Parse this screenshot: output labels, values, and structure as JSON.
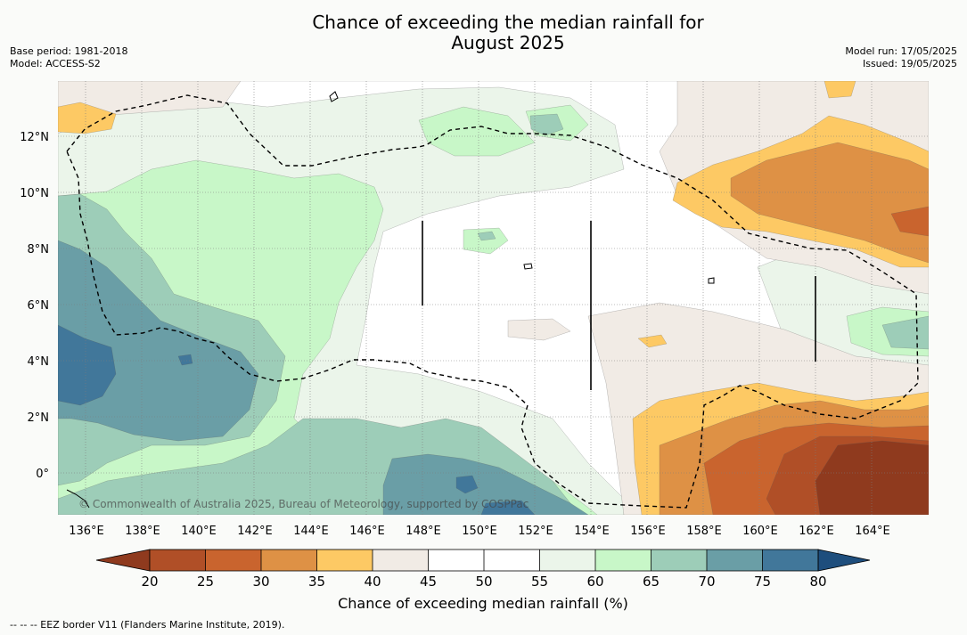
{
  "header": {
    "title_line1": "Chance of exceeding the median rainfall for",
    "title_line2": "August 2025",
    "base_period": "Base period: 1981-2018",
    "model": "Model: ACCESS-S2",
    "model_run": "Model run: 17/05/2025",
    "issued": "Issued: 19/05/2025"
  },
  "map": {
    "x_ticks": [
      "136°E",
      "138°E",
      "140°E",
      "142°E",
      "144°E",
      "146°E",
      "148°E",
      "150°E",
      "152°E",
      "154°E",
      "156°E",
      "158°E",
      "160°E",
      "162°E",
      "164°E"
    ],
    "y_ticks": [
      "12°N",
      "10°N",
      "8°N",
      "6°N",
      "4°N",
      "2°N",
      "0°"
    ],
    "copyright": "© Commonwealth of Australia 2025, Bureau of Meteorology, supported by COSPPac"
  },
  "colorbar": {
    "label": "Chance of exceeding median rainfall (%)",
    "ticks": [
      "20",
      "25",
      "30",
      "35",
      "40",
      "45",
      "50",
      "55",
      "60",
      "65",
      "70",
      "75",
      "80"
    ],
    "low_extend_color": "#8f3a1e",
    "high_extend_color": "#1e4e7d",
    "bin_colors": [
      "#b04f27",
      "#c9642e",
      "#de9145",
      "#fdc964",
      "#f1ebe5",
      "#ffffff",
      "#ffffff",
      "#ebf5ea",
      "#c8f7c8",
      "#9dcdb8",
      "#6a9ea6",
      "#41779a"
    ]
  },
  "colors": {
    "c20": "#8f3a1e",
    "c25": "#b04f27",
    "c30": "#c9642e",
    "c35": "#de9145",
    "c40": "#fdc964",
    "c45": "#f1ebe5",
    "c50": "#ffffff",
    "c60": "#ebf5ea",
    "c65": "#c8f7c8",
    "c70": "#9dcdb8",
    "c75": "#6a9ea6",
    "c80": "#41779a"
  },
  "footnote": "--  --  -- EEZ border V11 (Flanders Marine Institute, 2019)."
}
